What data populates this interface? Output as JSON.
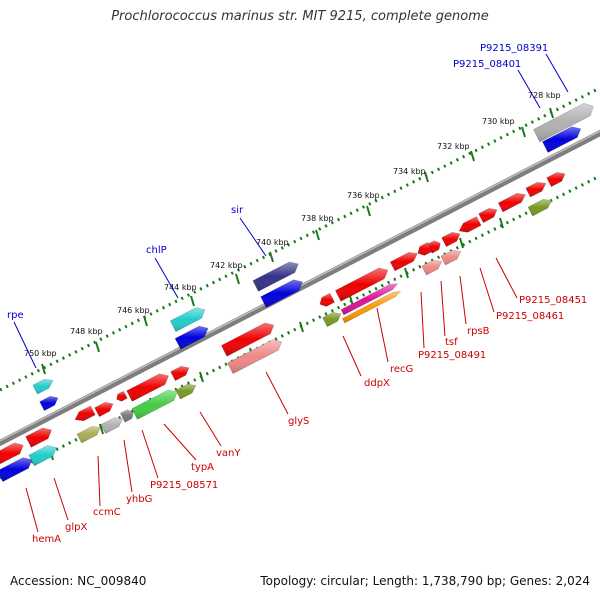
{
  "title": "Prochlorococcus marinus str. MIT 9215, complete genome",
  "footer": {
    "accession": "Accession: NC_009840",
    "topology": "Topology: circular; Length: 1,738,790 bp; Genes: 2,024"
  },
  "colors": {
    "backbone": "#808080",
    "tick": "#1a7a1a",
    "top_label": "#0000cc",
    "bottom_label": "#cc0000"
  },
  "ruler": [
    "728 kbp",
    "730 kbp",
    "732 kbp",
    "734 kbp",
    "736 kbp",
    "738 kbp",
    "740 kbp",
    "742 kbp",
    "744 kbp",
    "746 kbp",
    "748 kbp",
    "750 kbp"
  ],
  "top_labels": [
    "P9215_08391",
    "P9215_08401",
    "sir",
    "chlP",
    "rpe"
  ],
  "bottom_labels": [
    "P9215_08451",
    "P9215_08461",
    "rpsB",
    "tsf",
    "P9215_08491",
    "recG",
    "ddpX",
    "glyS",
    "vanY",
    "typA",
    "P9215_08571",
    "yhbG",
    "ccmC",
    "glpX",
    "hemA"
  ],
  "gene_colors": {
    "red": "#ee0000",
    "blue": "#0000dd",
    "cyan": "#22cccc",
    "navy": "#333388",
    "pink": "#ee8888",
    "gray": "#b0b0b0",
    "olive": "#779922",
    "green": "#44cc44",
    "magenta": "#dd1199",
    "orange": "#ff9900",
    "khaki": "#aaaa55",
    "darkgray": "#777777"
  }
}
